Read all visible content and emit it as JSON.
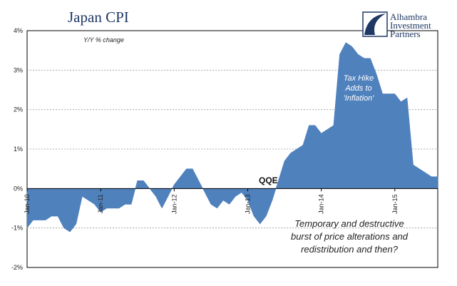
{
  "chart_data": {
    "type": "area",
    "title": "Japan CPI",
    "subtitle": "Y/Y % change",
    "ylim": [
      -2,
      4
    ],
    "yticks": [
      "4%",
      "3%",
      "2%",
      "1%",
      "0%",
      "-1%",
      "-2%"
    ],
    "ytick_values": [
      4,
      3,
      2,
      1,
      0,
      -1,
      -2
    ],
    "grid": "horizontal dashed",
    "xticks": [
      "Jan-10",
      "Jan-11",
      "Jan-12",
      "Jan-13",
      "Jan-14",
      "Jan-15"
    ],
    "fill_color": "#4f81bd",
    "series": [
      {
        "x_start": "Jan-10",
        "frequency": "monthly",
        "values": [
          -1.0,
          -0.8,
          -0.8,
          -0.8,
          -0.7,
          -0.7,
          -1.0,
          -1.1,
          -0.9,
          -0.2,
          -0.3,
          -0.4,
          -0.6,
          -0.5,
          -0.5,
          -0.5,
          -0.4,
          -0.4,
          0.2,
          0.2,
          0.0,
          -0.2,
          -0.5,
          -0.2,
          0.1,
          0.3,
          0.5,
          0.5,
          0.2,
          -0.1,
          -0.4,
          -0.5,
          -0.3,
          -0.4,
          -0.2,
          -0.1,
          -0.3,
          -0.7,
          -0.9,
          -0.7,
          -0.3,
          0.2,
          0.7,
          0.9,
          1.0,
          1.1,
          1.6,
          1.6,
          1.4,
          1.5,
          1.6,
          3.4,
          3.7,
          3.6,
          3.4,
          3.3,
          3.3,
          2.9,
          2.4,
          2.4,
          2.4,
          2.2,
          2.3,
          0.6,
          0.5,
          0.4,
          0.3,
          0.3
        ]
      }
    ],
    "annotations": {
      "qqe": "QQE",
      "tax_hike": [
        "Tax Hike",
        "Adds to",
        "'Inflation'"
      ],
      "comment": [
        "Temporary and destructive",
        "burst of price alterations and",
        "redistribution and then?"
      ]
    }
  },
  "logo": {
    "name": "alhambra-logo",
    "lines": [
      "Alhambra",
      "Investment",
      "Partners"
    ],
    "color": "#1f3864"
  }
}
